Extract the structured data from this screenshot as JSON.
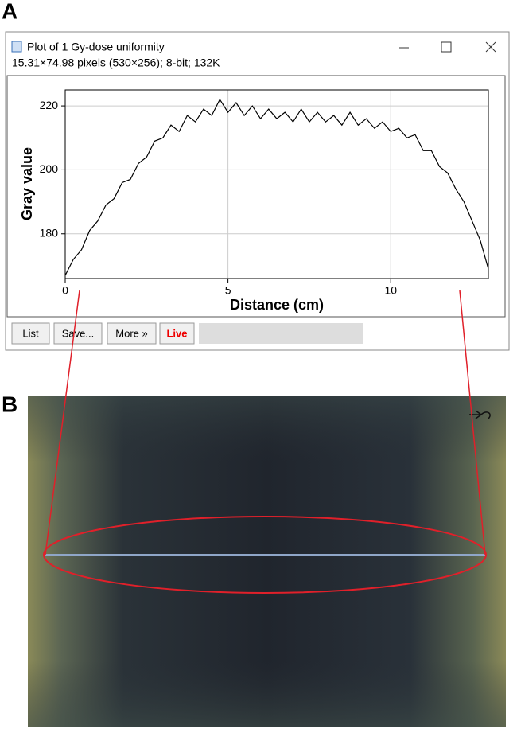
{
  "panel_labels": [
    "A",
    "B"
  ],
  "window": {
    "title": "Plot of 1 Gy-dose uniformity",
    "info": "15.31×74.98 pixels (530×256); 8-bit; 132K",
    "buttons": [
      "List",
      "Save...",
      "More »",
      "Live"
    ]
  },
  "chart_data": {
    "type": "line",
    "xlabel": "Distance (cm)",
    "ylabel": "Gray value",
    "x": [
      0,
      0.25,
      0.5,
      0.75,
      1,
      1.25,
      1.5,
      1.75,
      2,
      2.25,
      2.5,
      2.75,
      3,
      3.25,
      3.5,
      3.75,
      4,
      4.25,
      4.5,
      4.75,
      5,
      5.25,
      5.5,
      5.75,
      6,
      6.25,
      6.5,
      6.75,
      7,
      7.25,
      7.5,
      7.75,
      8,
      8.25,
      8.5,
      8.75,
      9,
      9.25,
      9.5,
      9.75,
      10,
      10.25,
      10.5,
      10.75,
      11,
      11.25,
      11.5,
      11.75,
      12,
      12.25,
      12.5,
      12.75,
      13
    ],
    "values": [
      167,
      172,
      175,
      181,
      184,
      189,
      191,
      196,
      197,
      202,
      204,
      209,
      210,
      214,
      212,
      217,
      215,
      219,
      217,
      222,
      218,
      221,
      217,
      220,
      216,
      219,
      216,
      218,
      215,
      219,
      215,
      218,
      215,
      217,
      214,
      218,
      214,
      216,
      213,
      215,
      212,
      213,
      210,
      211,
      206,
      206,
      201,
      199,
      194,
      190,
      184,
      178,
      169
    ],
    "color": "#000000",
    "xlim": [
      0,
      13
    ],
    "ylim": [
      166,
      225
    ],
    "xticks": [
      0,
      5,
      10
    ],
    "yticks": [
      180,
      200,
      220
    ],
    "grid": true
  }
}
